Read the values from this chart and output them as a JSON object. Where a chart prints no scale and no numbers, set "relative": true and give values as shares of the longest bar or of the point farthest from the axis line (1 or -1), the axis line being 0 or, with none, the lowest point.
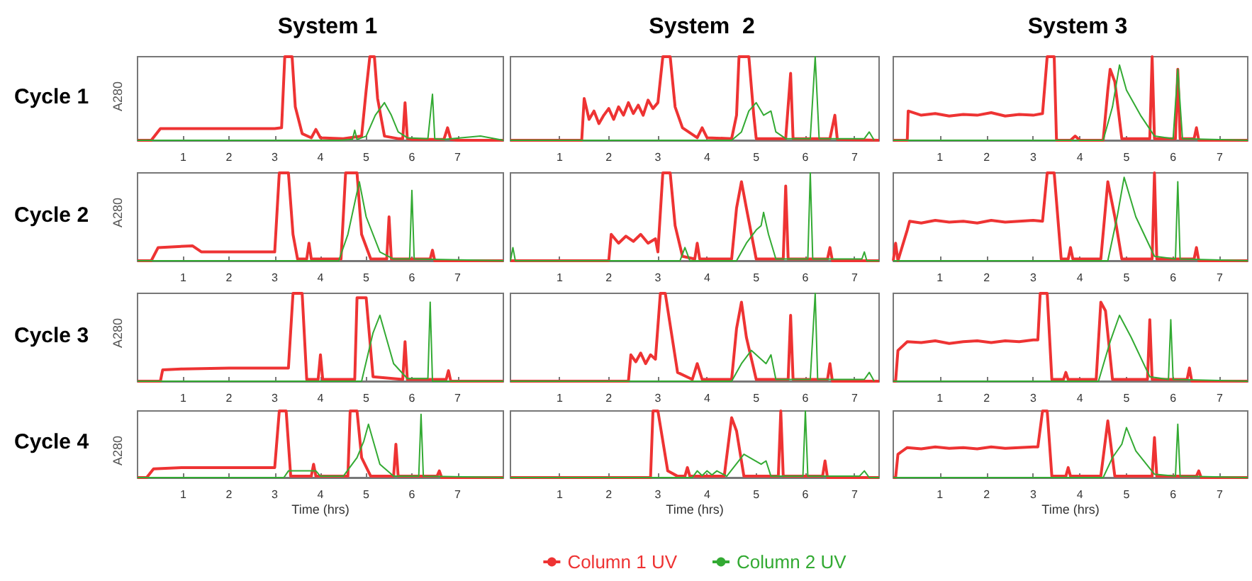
{
  "chart_data": [
    {
      "type": "line",
      "title": "System 1",
      "ylabel": "A280",
      "annotations": [
        "Cycle 1"
      ],
      "relative": true,
      "xlim": [
        0,
        8
      ],
      "xticks": [
        1,
        2,
        3,
        4,
        5,
        6,
        7
      ],
      "grid": false,
      "legend": false,
      "marker": "none",
      "series": [
        {
          "color": "#ee3333",
          "x": [
            0,
            0.3,
            0.5,
            1,
            2,
            3,
            3.15,
            3.22,
            3.3,
            3.38,
            3.45,
            3.6,
            3.8,
            3.9,
            4.0,
            4.5,
            4.9,
            5.0,
            5.08,
            5.18,
            5.25,
            5.4,
            5.7,
            5.8,
            5.85,
            5.9,
            6.0,
            6.7,
            6.78,
            6.85,
            7,
            8
          ],
          "values": [
            0,
            0,
            0.14,
            0.14,
            0.14,
            0.14,
            0.15,
            1,
            1,
            1,
            0.4,
            0.08,
            0.03,
            0.13,
            0.03,
            0.02,
            0.05,
            0.6,
            1,
            1,
            0.5,
            0.05,
            0.02,
            0.02,
            0.45,
            0.02,
            0.01,
            0.01,
            0.15,
            0.01,
            0,
            0
          ]
        },
        {
          "color": "#33aa33",
          "x": [
            0,
            4.4,
            4.7,
            4.75,
            4.8,
            5.0,
            5.2,
            5.4,
            5.55,
            5.7,
            5.9,
            6.35,
            6.45,
            6.5,
            6.7,
            7.5,
            8
          ],
          "values": [
            0,
            0,
            0.01,
            0.12,
            0.01,
            0.05,
            0.3,
            0.45,
            0.3,
            0.1,
            0.03,
            0.02,
            0.55,
            0.02,
            0.01,
            0.05,
            0
          ]
        }
      ]
    },
    {
      "type": "line",
      "title": "System  2",
      "relative": true,
      "xlim": [
        0,
        7.5
      ],
      "xticks": [
        1,
        2,
        3,
        4,
        5,
        6,
        7
      ],
      "grid": false,
      "legend": false,
      "marker": "none",
      "series": [
        {
          "color": "#ee3333",
          "x": [
            0,
            1.45,
            1.5,
            1.6,
            1.7,
            1.8,
            1.9,
            2.0,
            2.1,
            2.2,
            2.3,
            2.4,
            2.5,
            2.6,
            2.7,
            2.8,
            2.9,
            3.0,
            3.1,
            3.25,
            3.35,
            3.5,
            3.8,
            3.9,
            4.0,
            4.5,
            4.6,
            4.65,
            4.85,
            4.95,
            5.0,
            5.6,
            5.7,
            5.75,
            6.5,
            6.6,
            6.65,
            7.5
          ],
          "values": [
            0,
            0,
            0.5,
            0.25,
            0.35,
            0.2,
            0.3,
            0.38,
            0.25,
            0.4,
            0.3,
            0.45,
            0.32,
            0.42,
            0.3,
            0.48,
            0.38,
            0.45,
            1,
            1,
            0.4,
            0.15,
            0.03,
            0.15,
            0.03,
            0.02,
            0.3,
            1,
            1,
            0.3,
            0.02,
            0.02,
            0.8,
            0.02,
            0.02,
            0.3,
            0.01,
            0
          ]
        },
        {
          "color": "#33aa33",
          "x": [
            0,
            4.5,
            4.7,
            4.85,
            5.0,
            5.15,
            5.3,
            5.4,
            5.6,
            6.1,
            6.2,
            6.28,
            7.2,
            7.3,
            7.4
          ],
          "values": [
            0,
            0,
            0.1,
            0.35,
            0.45,
            0.3,
            0.35,
            0.1,
            0.02,
            0.02,
            1,
            0.02,
            0.02,
            0.1,
            0
          ]
        }
      ]
    },
    {
      "type": "line",
      "title": "System 3",
      "relative": true,
      "xlim": [
        0,
        7.6
      ],
      "xticks": [
        1,
        2,
        3,
        4,
        5,
        6,
        7
      ],
      "grid": false,
      "legend": false,
      "marker": "none",
      "series": [
        {
          "color": "#ee3333",
          "x": [
            0,
            0.3,
            0.32,
            0.6,
            0.9,
            1.2,
            1.5,
            1.8,
            2.1,
            2.4,
            2.7,
            3.0,
            3.2,
            3.3,
            3.45,
            3.5,
            3.8,
            3.9,
            4.0,
            4.5,
            4.6,
            4.65,
            4.75,
            4.9,
            5.5,
            5.55,
            5.6,
            6.05,
            6.1,
            6.15,
            6.45,
            6.5,
            6.55,
            7.6
          ],
          "values": [
            0,
            0,
            0.35,
            0.3,
            0.32,
            0.29,
            0.31,
            0.3,
            0.33,
            0.29,
            0.31,
            0.3,
            0.32,
            1,
            1,
            0,
            0,
            0.05,
            0,
            0,
            0.6,
            0.85,
            0.7,
            0.02,
            0.02,
            1,
            0.02,
            0.02,
            0.85,
            0.02,
            0.02,
            0.15,
            0,
            0
          ]
        },
        {
          "color": "#33aa33",
          "x": [
            0,
            4.5,
            4.7,
            4.85,
            5.0,
            5.3,
            5.6,
            6.0,
            6.1,
            6.2,
            7.6
          ],
          "values": [
            0,
            0,
            0.4,
            0.9,
            0.6,
            0.3,
            0.05,
            0.02,
            0.85,
            0.02,
            0
          ]
        }
      ]
    },
    {
      "type": "line",
      "ylabel": "A280",
      "annotations": [
        "Cycle 2"
      ],
      "relative": true,
      "xlim": [
        0,
        8
      ],
      "xticks": [
        1,
        2,
        3,
        4,
        5,
        6,
        7
      ],
      "grid": false,
      "legend": false,
      "marker": "none",
      "series": [
        {
          "color": "#ee3333",
          "x": [
            0,
            0.3,
            0.45,
            1.2,
            1.4,
            2,
            3.0,
            3.1,
            3.3,
            3.4,
            3.5,
            3.7,
            3.75,
            3.8,
            4.45,
            4.55,
            4.8,
            4.9,
            5.1,
            5.45,
            5.5,
            5.55,
            6.4,
            6.45,
            6.5,
            8
          ],
          "values": [
            0,
            0,
            0.15,
            0.17,
            0.1,
            0.1,
            0.1,
            1,
            1,
            0.3,
            0.02,
            0.02,
            0.2,
            0.02,
            0.02,
            1,
            1,
            0.3,
            0.02,
            0.02,
            0.5,
            0.02,
            0.02,
            0.12,
            0,
            0
          ]
        },
        {
          "color": "#33aa33",
          "x": [
            0,
            4.4,
            4.6,
            4.85,
            5.0,
            5.3,
            5.6,
            5.95,
            6.0,
            6.05,
            8
          ],
          "values": [
            0,
            0,
            0.3,
            0.9,
            0.5,
            0.1,
            0.02,
            0.02,
            0.8,
            0.02,
            0
          ]
        }
      ]
    },
    {
      "type": "line",
      "relative": true,
      "xlim": [
        0,
        7.5
      ],
      "xticks": [
        1,
        2,
        3,
        4,
        5,
        6,
        7
      ],
      "grid": false,
      "legend": false,
      "marker": "none",
      "series": [
        {
          "color": "#ee3333",
          "x": [
            0,
            2.0,
            2.05,
            2.2,
            2.35,
            2.5,
            2.65,
            2.8,
            2.95,
            3.0,
            3.1,
            3.25,
            3.35,
            3.5,
            3.75,
            3.8,
            3.85,
            4.5,
            4.6,
            4.7,
            4.8,
            5.0,
            5.55,
            5.6,
            5.65,
            6.45,
            6.5,
            6.55,
            7.5
          ],
          "values": [
            0,
            0,
            0.3,
            0.2,
            0.28,
            0.22,
            0.3,
            0.2,
            0.25,
            0.1,
            1,
            1,
            0.4,
            0.05,
            0.02,
            0.2,
            0.02,
            0.02,
            0.6,
            0.9,
            0.6,
            0.02,
            0.02,
            0.85,
            0.02,
            0.02,
            0.15,
            0,
            0
          ]
        },
        {
          "color": "#33aa33",
          "x": [
            0,
            0.05,
            0.1,
            3.45,
            3.55,
            3.65,
            4.6,
            4.8,
            5.0,
            5.1,
            5.15,
            5.25,
            5.4,
            6.05,
            6.1,
            6.15,
            7.15,
            7.2,
            7.25,
            7.5
          ],
          "values": [
            0,
            0.15,
            0,
            0,
            0.15,
            0,
            0,
            0.2,
            0.35,
            0.4,
            0.55,
            0.3,
            0.02,
            0.02,
            1,
            0.02,
            0.02,
            0.1,
            0,
            0
          ]
        }
      ]
    },
    {
      "type": "line",
      "relative": true,
      "xlim": [
        0,
        7.6
      ],
      "xticks": [
        1,
        2,
        3,
        4,
        5,
        6,
        7
      ],
      "grid": false,
      "legend": false,
      "marker": "none",
      "series": [
        {
          "color": "#ee3333",
          "x": [
            0,
            0.05,
            0.1,
            0.3,
            0.35,
            0.6,
            0.9,
            1.2,
            1.5,
            1.8,
            2.1,
            2.4,
            2.7,
            3.0,
            3.2,
            3.3,
            3.45,
            3.6,
            3.75,
            3.8,
            3.85,
            4.45,
            4.6,
            4.75,
            4.9,
            5.55,
            5.6,
            5.65,
            6.45,
            6.5,
            6.55,
            7.6
          ],
          "values": [
            0,
            0.2,
            0,
            0.35,
            0.45,
            0.43,
            0.46,
            0.44,
            0.45,
            0.43,
            0.46,
            0.44,
            0.45,
            0.46,
            0.45,
            1,
            1,
            0.02,
            0.02,
            0.15,
            0.02,
            0.02,
            0.9,
            0.5,
            0.02,
            0.02,
            1,
            0.02,
            0.02,
            0.15,
            0,
            0
          ]
        },
        {
          "color": "#33aa33",
          "x": [
            0,
            4.6,
            4.8,
            4.95,
            5.2,
            5.6,
            6.05,
            6.1,
            6.15,
            7.6
          ],
          "values": [
            0,
            0,
            0.5,
            0.95,
            0.5,
            0.05,
            0.02,
            0.9,
            0.02,
            0
          ]
        }
      ]
    },
    {
      "type": "line",
      "ylabel": "A280",
      "annotations": [
        "Cycle 3"
      ],
      "relative": true,
      "xlim": [
        0,
        8
      ],
      "xticks": [
        1,
        2,
        3,
        4,
        5,
        6,
        7
      ],
      "grid": false,
      "legend": false,
      "marker": "none",
      "series": [
        {
          "color": "#ee3333",
          "x": [
            0,
            0.5,
            0.55,
            1,
            2,
            3,
            3.3,
            3.4,
            3.6,
            3.7,
            3.95,
            4.0,
            4.05,
            4.75,
            4.8,
            5.0,
            5.15,
            5.8,
            5.85,
            5.9,
            6.75,
            6.8,
            6.85,
            8
          ],
          "values": [
            0,
            0,
            0.13,
            0.14,
            0.15,
            0.15,
            0.15,
            1,
            1,
            0.02,
            0.02,
            0.3,
            0.02,
            0.02,
            0.95,
            0.95,
            0.05,
            0.02,
            0.45,
            0.02,
            0.02,
            0.12,
            0,
            0
          ]
        },
        {
          "color": "#33aa33",
          "x": [
            0,
            4.9,
            5.15,
            5.3,
            5.6,
            5.9,
            6.35,
            6.4,
            6.45,
            8
          ],
          "values": [
            0,
            0,
            0.55,
            0.75,
            0.2,
            0.03,
            0.03,
            0.9,
            0,
            0
          ]
        }
      ]
    },
    {
      "type": "line",
      "relative": true,
      "xlim": [
        0,
        7.5
      ],
      "xticks": [
        1,
        2,
        3,
        4,
        5,
        6,
        7
      ],
      "grid": false,
      "legend": false,
      "marker": "none",
      "series": [
        {
          "color": "#ee3333",
          "x": [
            0,
            2.4,
            2.45,
            2.55,
            2.65,
            2.75,
            2.85,
            2.95,
            3.05,
            3.15,
            3.4,
            3.7,
            3.8,
            3.9,
            4.5,
            4.6,
            4.7,
            4.8,
            5.0,
            5.65,
            5.7,
            5.75,
            6.45,
            6.5,
            6.55,
            7.5
          ],
          "values": [
            0,
            0,
            0.3,
            0.22,
            0.32,
            0.2,
            0.3,
            0.25,
            1,
            1,
            0.1,
            0.02,
            0.2,
            0.02,
            0.02,
            0.6,
            0.9,
            0.5,
            0.02,
            0.02,
            0.75,
            0.02,
            0.02,
            0.2,
            0,
            0
          ]
        },
        {
          "color": "#33aa33",
          "x": [
            0,
            4.5,
            4.7,
            4.9,
            5.1,
            5.2,
            5.3,
            5.4,
            6.1,
            6.2,
            6.25,
            7.2,
            7.3,
            7.4
          ],
          "values": [
            0,
            0,
            0.2,
            0.35,
            0.25,
            0.2,
            0.3,
            0.02,
            0.02,
            1,
            0.02,
            0.02,
            0.1,
            0
          ]
        }
      ]
    },
    {
      "type": "line",
      "relative": true,
      "xlim": [
        0,
        7.6
      ],
      "xticks": [
        1,
        2,
        3,
        4,
        5,
        6,
        7
      ],
      "grid": false,
      "legend": false,
      "marker": "none",
      "series": [
        {
          "color": "#ee3333",
          "x": [
            0,
            0.05,
            0.1,
            0.3,
            0.6,
            0.9,
            1.2,
            1.5,
            1.8,
            2.1,
            2.4,
            2.7,
            3.0,
            3.1,
            3.15,
            3.3,
            3.4,
            3.65,
            3.7,
            3.75,
            4.35,
            4.45,
            4.55,
            4.7,
            5.45,
            5.5,
            5.55,
            6.3,
            6.35,
            6.4,
            7.6
          ],
          "values": [
            0,
            0,
            0.35,
            0.45,
            0.44,
            0.46,
            0.43,
            0.45,
            0.46,
            0.44,
            0.46,
            0.45,
            0.47,
            0.47,
            1,
            1,
            0.02,
            0.02,
            0.1,
            0.02,
            0.02,
            0.9,
            0.8,
            0.02,
            0.02,
            0.7,
            0.02,
            0.02,
            0.15,
            0,
            0
          ]
        },
        {
          "color": "#33aa33",
          "x": [
            0,
            4.4,
            4.65,
            4.85,
            5.1,
            5.5,
            5.9,
            5.95,
            6.0,
            7.6
          ],
          "values": [
            0,
            0,
            0.45,
            0.75,
            0.5,
            0.05,
            0.02,
            0.7,
            0.02,
            0
          ]
        }
      ]
    },
    {
      "type": "line",
      "ylabel": "A280",
      "xlabel": "Time (hrs)",
      "annotations": [
        "Cycle 4"
      ],
      "relative": true,
      "xlim": [
        0,
        8
      ],
      "xticks": [
        1,
        2,
        3,
        4,
        5,
        6,
        7
      ],
      "grid": false,
      "legend": false,
      "marker": "none",
      "series": [
        {
          "color": "#ee3333",
          "x": [
            0,
            0.2,
            0.35,
            1,
            2,
            3.0,
            3.1,
            3.25,
            3.35,
            3.8,
            3.85,
            3.9,
            4.6,
            4.65,
            4.8,
            4.9,
            5.1,
            5.6,
            5.65,
            5.7,
            6.55,
            6.6,
            6.65,
            8
          ],
          "values": [
            0,
            0,
            0.13,
            0.15,
            0.15,
            0.15,
            1,
            1,
            0.02,
            0.02,
            0.2,
            0.02,
            0.02,
            1,
            1,
            0.3,
            0.02,
            0.02,
            0.5,
            0.02,
            0.02,
            0.1,
            0,
            0
          ]
        },
        {
          "color": "#33aa33",
          "x": [
            0,
            3.2,
            3.3,
            3.9,
            4.0,
            4.5,
            4.8,
            4.95,
            5.05,
            5.3,
            5.6,
            6.15,
            6.2,
            6.25,
            8
          ],
          "values": [
            0,
            0,
            0.1,
            0.1,
            0.02,
            0.02,
            0.3,
            0.55,
            0.8,
            0.2,
            0.02,
            0.02,
            0.95,
            0.02,
            0
          ]
        }
      ]
    },
    {
      "type": "line",
      "xlabel": "Time (hrs)",
      "relative": true,
      "xlim": [
        0,
        7.5
      ],
      "xticks": [
        1,
        2,
        3,
        4,
        5,
        6,
        7
      ],
      "grid": false,
      "legend": "bottom",
      "marker": "none",
      "series": [
        {
          "name": "Column 1 UV",
          "color": "#ee3333",
          "x": [
            0,
            2.85,
            2.9,
            3.0,
            3.2,
            3.4,
            3.55,
            3.6,
            3.65,
            4.35,
            4.5,
            4.6,
            4.75,
            5.45,
            5.5,
            5.55,
            6.35,
            6.4,
            6.45,
            7.5
          ],
          "values": [
            0,
            0,
            1,
            1,
            0.1,
            0.02,
            0.02,
            0.15,
            0.02,
            0.02,
            0.9,
            0.7,
            0.02,
            0.02,
            1,
            0.02,
            0.02,
            0.25,
            0,
            0
          ]
        },
        {
          "name": "Column 2 UV",
          "color": "#33aa33",
          "x": [
            0,
            3.7,
            3.8,
            3.9,
            4.0,
            4.1,
            4.2,
            4.4,
            4.75,
            5.1,
            5.2,
            5.3,
            5.95,
            6.0,
            6.05,
            7.1,
            7.2,
            7.3,
            7.5
          ],
          "values": [
            0,
            0,
            0.1,
            0.03,
            0.1,
            0.04,
            0.1,
            0.02,
            0.35,
            0.2,
            0.25,
            0.02,
            0.02,
            1,
            0.02,
            0.02,
            0.1,
            0,
            0
          ]
        }
      ]
    },
    {
      "type": "line",
      "xlabel": "Time (hrs)",
      "relative": true,
      "xlim": [
        0,
        7.6
      ],
      "xticks": [
        1,
        2,
        3,
        4,
        5,
        6,
        7
      ],
      "grid": false,
      "legend": false,
      "marker": "none",
      "series": [
        {
          "color": "#ee3333",
          "x": [
            0,
            0.05,
            0.1,
            0.3,
            0.6,
            0.9,
            1.2,
            1.5,
            1.8,
            2.1,
            2.4,
            2.7,
            3.0,
            3.1,
            3.2,
            3.3,
            3.4,
            3.7,
            3.75,
            3.8,
            4.45,
            4.6,
            4.75,
            5.55,
            5.6,
            5.65,
            6.5,
            6.55,
            6.6,
            7.6
          ],
          "values": [
            0,
            0,
            0.35,
            0.45,
            0.43,
            0.46,
            0.44,
            0.45,
            0.43,
            0.46,
            0.44,
            0.45,
            0.46,
            0.46,
            1,
            1,
            0.02,
            0.02,
            0.15,
            0.02,
            0.02,
            0.85,
            0.02,
            0.02,
            0.6,
            0.02,
            0.02,
            0.1,
            0,
            0
          ]
        },
        {
          "color": "#33aa33",
          "x": [
            0,
            4.5,
            4.7,
            4.9,
            5.0,
            5.2,
            5.6,
            6.05,
            6.1,
            6.15,
            7.6
          ],
          "values": [
            0,
            0,
            0.3,
            0.5,
            0.75,
            0.4,
            0.05,
            0.02,
            0.8,
            0.02,
            0
          ]
        }
      ]
    }
  ]
}
